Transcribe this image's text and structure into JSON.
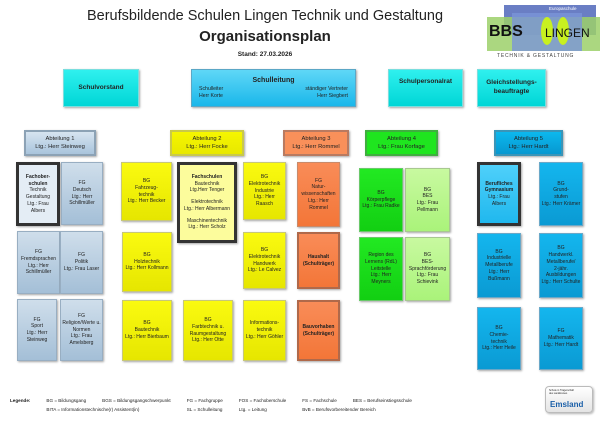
{
  "header": {
    "title": "Berufsbildende Schulen Lingen Technik und Gestaltung",
    "subtitle": "Organisationsplan",
    "stand": "Stand: 27.03.2026"
  },
  "logo": {
    "text_bbs": "BBS",
    "text_lingen": "Lingen",
    "tagline": "TECHNIK & GESTALTUNG",
    "badge": "Europaschule"
  },
  "top_boxes": {
    "schulvorstand": "Schulvorstand",
    "schulleitung": {
      "title": "Schulleitung",
      "left_role": "Schulleiter",
      "left_name": "Herr Korte",
      "right_role": "ständiger Vertreter",
      "right_name": "Herr Siegbert"
    },
    "personalrat": "Schulpersonalrat",
    "gleichstellung": [
      "Gleichstellungs-",
      "beauftragte"
    ]
  },
  "departments": [
    {
      "name": "Abteilung 1",
      "lead": "Ltg.: Herr Steinweg",
      "color": "grey"
    },
    {
      "name": "Abteilung 2",
      "lead": "Ltg.: Herr Focke",
      "color": "yellow"
    },
    {
      "name": "Abteilung 3",
      "lead": "Ltg.: Herr Rommel",
      "color": "orange"
    },
    {
      "name": "Abteilung 4",
      "lead": "Ltg.: Frau Korfage",
      "color": "green"
    },
    {
      "name": "Abteilung 5",
      "lead": "Ltg.: Herr Hardt",
      "color": "blue"
    }
  ],
  "cards": [
    {
      "lines": [
        "Fachober-",
        "schulen",
        "Technik",
        "Gestaltung",
        "Ltg.: Frau Albers"
      ],
      "bold_lines": 2,
      "style": "lgrey",
      "highlight": true
    },
    {
      "lines": [
        "FG",
        "Deutsch",
        "Ltg.: Herr",
        "Schillmüller"
      ],
      "style": "grey"
    },
    {
      "lines": [
        "FG",
        "Fremdsprachen",
        "Ltg.: Herr",
        "Schillmüller"
      ],
      "style": "grey"
    },
    {
      "lines": [
        "FG",
        "Politik",
        "Ltg.: Frau Laser"
      ],
      "style": "grey"
    },
    {
      "lines": [
        "FG",
        "Sport",
        "Ltg.: Herr",
        "Steinweg"
      ],
      "style": "grey"
    },
    {
      "lines": [
        "FG",
        "Religion/Werte u.",
        "Normen",
        "Ltg.: Frau",
        "Amelsberg"
      ],
      "style": "grey"
    },
    {
      "lines": [
        "BG",
        "Fahrzeug-",
        "technik",
        "Ltg.: Herr Becker"
      ],
      "style": "yellow"
    },
    {
      "lines": [
        "Fachschulen",
        "Bautechnik",
        "Ltg.Herr Tenger",
        "",
        "Elektrotechnik",
        "Ltg.: Herr Albermann",
        "",
        "Maschinentechnik",
        "Ltg.: Herr Scholz"
      ],
      "bold_lines": 1,
      "style": "lyellow",
      "highlight": true
    },
    {
      "lines": [
        "BG",
        "Elektrotechnik",
        "Industrie",
        "Ltg.: Herr Raasch"
      ],
      "style": "yellow"
    },
    {
      "lines": [
        "FG",
        "Natur-",
        "wissenschaften",
        "Ltg.: Herr",
        "Rommel"
      ],
      "style": "orange"
    },
    {
      "lines": [
        "BG",
        "Holztechnik",
        "Ltg.: Herr Kollmann"
      ],
      "style": "yellow"
    },
    {
      "lines": [
        "BG",
        "Elektrotechnik",
        "Handwerk",
        "Ltg.: Le Calvez"
      ],
      "style": "yellow"
    },
    {
      "lines": [
        "Haushalt",
        "(Schulträger)"
      ],
      "bold_lines": 2,
      "style": "orange",
      "thick": true
    },
    {
      "lines": [
        "BG",
        "Bautechnik",
        "Ltg.: Herr Bierbaum"
      ],
      "style": "yellow"
    },
    {
      "lines": [
        "BG",
        "Farbtechnik u.",
        "Raumgestaltung",
        "Ltg.: Herr Otte"
      ],
      "style": "yellow"
    },
    {
      "lines": [
        "Informations-",
        "technik",
        "Ltg.: Herr Göhler"
      ],
      "style": "yellow"
    },
    {
      "lines": [
        "Bauvorhaben",
        "(Schulträger)"
      ],
      "bold_lines": 2,
      "style": "orange",
      "thick": true
    },
    {
      "lines": [
        "BG",
        "Körperpflege",
        "Ltg.: Frau Radke"
      ],
      "style": "green"
    },
    {
      "lines": [
        "BG",
        "BES",
        "Ltg.: Frau",
        "Pellmann"
      ],
      "style": "lgreen"
    },
    {
      "lines": [
        "Region des",
        "Lernens (RdL)",
        "Leitstelle",
        "Ltg.: Herr",
        "Meyners"
      ],
      "style": "green"
    },
    {
      "lines": [
        "BG",
        "BES-",
        "Sprachförderung",
        "Ltg.: Frau",
        "Schievink"
      ],
      "style": "lgreen"
    },
    {
      "lines": [
        "Berufliches",
        "Gymnasium",
        "Ltg.: Frau Albers"
      ],
      "bold_lines": 2,
      "style": "lblue",
      "highlight": true
    },
    {
      "lines": [
        "BG",
        "Grund-",
        "stufen",
        "Ltg.: Herr Krämer"
      ],
      "style": "blue"
    },
    {
      "lines": [
        "BG",
        "Industrielle",
        "Metallberufe",
        "Ltg.: Herr",
        "Bußmann"
      ],
      "style": "blue"
    },
    {
      "lines": [
        "BG",
        "Handwerkl.",
        "Metallberufe/",
        "2-jähr.",
        "Ausbildungen",
        "Ltg.: Herr Schulte"
      ],
      "style": "blue"
    },
    {
      "lines": [
        "BG",
        "Chemie-",
        "technik",
        "Ltg.: Herr Heile"
      ],
      "style": "blue"
    },
    {
      "lines": [
        "FG",
        "Mathematik",
        "Ltg.: Herr Hardt"
      ],
      "style": "blue"
    }
  ],
  "legend": {
    "label": "Legende:",
    "rows": [
      [
        "BG = Bildungsgang",
        "BGS = Bildungsgangschwerpunkt",
        "FG = Fachgruppe",
        "FOS = Fachoberschule",
        "FS = Fachschule",
        "BES = Berufseinstiegsschule"
      ],
      [
        "BITA = Informationstechnische(r) Assistent(in)",
        "",
        "SL = Schulleitung",
        "Ltg. = Leitung",
        "BvB = Berufsvorbereitender Bereich",
        ""
      ]
    ]
  },
  "emsland_logo": {
    "small": "Schule in Trägerschaft des Landkreises",
    "name": "Emsland"
  }
}
